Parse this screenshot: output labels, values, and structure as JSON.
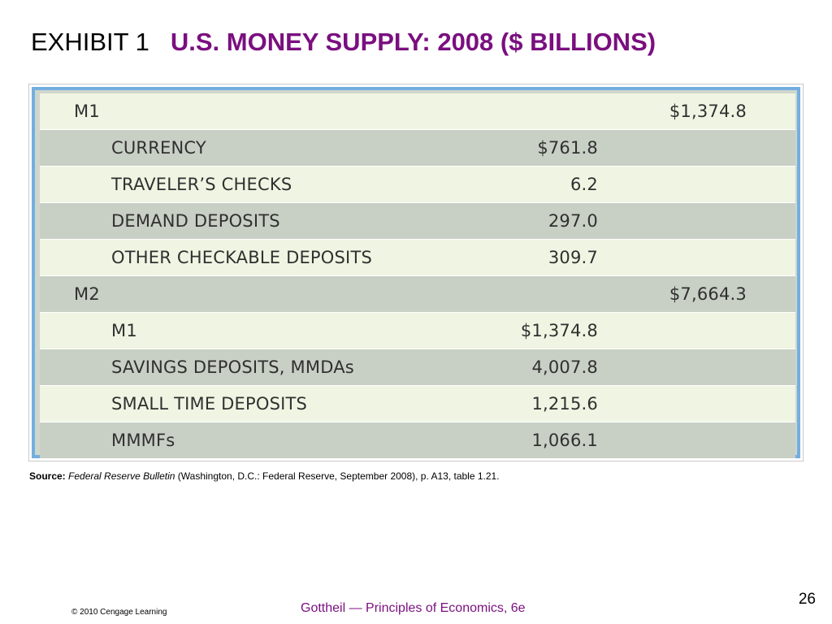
{
  "title": {
    "exhibit": "EXHIBIT 1",
    "heading": "U.S. MONEY SUPPLY: 2008 ($ BILLIONS)"
  },
  "table": {
    "rows": [
      {
        "label": "M1",
        "amount": "",
        "total": "$1,374.8"
      },
      {
        "label": "CURRENCY",
        "amount": "$761.8",
        "total": ""
      },
      {
        "label": "TRAVELER’S CHECKS",
        "amount": "6.2",
        "total": ""
      },
      {
        "label": "DEMAND DEPOSITS",
        "amount": "297.0",
        "total": ""
      },
      {
        "label": "OTHER CHECKABLE DEPOSITS",
        "amount": "309.7",
        "total": ""
      },
      {
        "label": "M2",
        "amount": "",
        "total": "$7,664.3"
      },
      {
        "label": "M1",
        "amount": "$1,374.8",
        "total": ""
      },
      {
        "label": "SAVINGS DEPOSITS, MMDAs",
        "amount": "4,007.8",
        "total": ""
      },
      {
        "label": "SMALL TIME DEPOSITS",
        "amount": "1,215.6",
        "total": ""
      },
      {
        "label": "MMMFs",
        "amount": "1,066.1",
        "total": ""
      }
    ]
  },
  "source": {
    "label": "Source:",
    "publication": "Federal Reserve Bulletin",
    "details": "(Washington, D.C.: Federal Reserve, September 2008), p. A13, table 1.21."
  },
  "footer": {
    "page_number": "26",
    "copyright": "© 2010 Cengage Learning",
    "book": "Gottheil — Principles of Economics, 6e"
  },
  "colors": {
    "title_accent": "#7a0f7f",
    "table_border": "#74aee0",
    "row_light": "#f0f5e3",
    "row_dark": "#c8cfc5"
  }
}
